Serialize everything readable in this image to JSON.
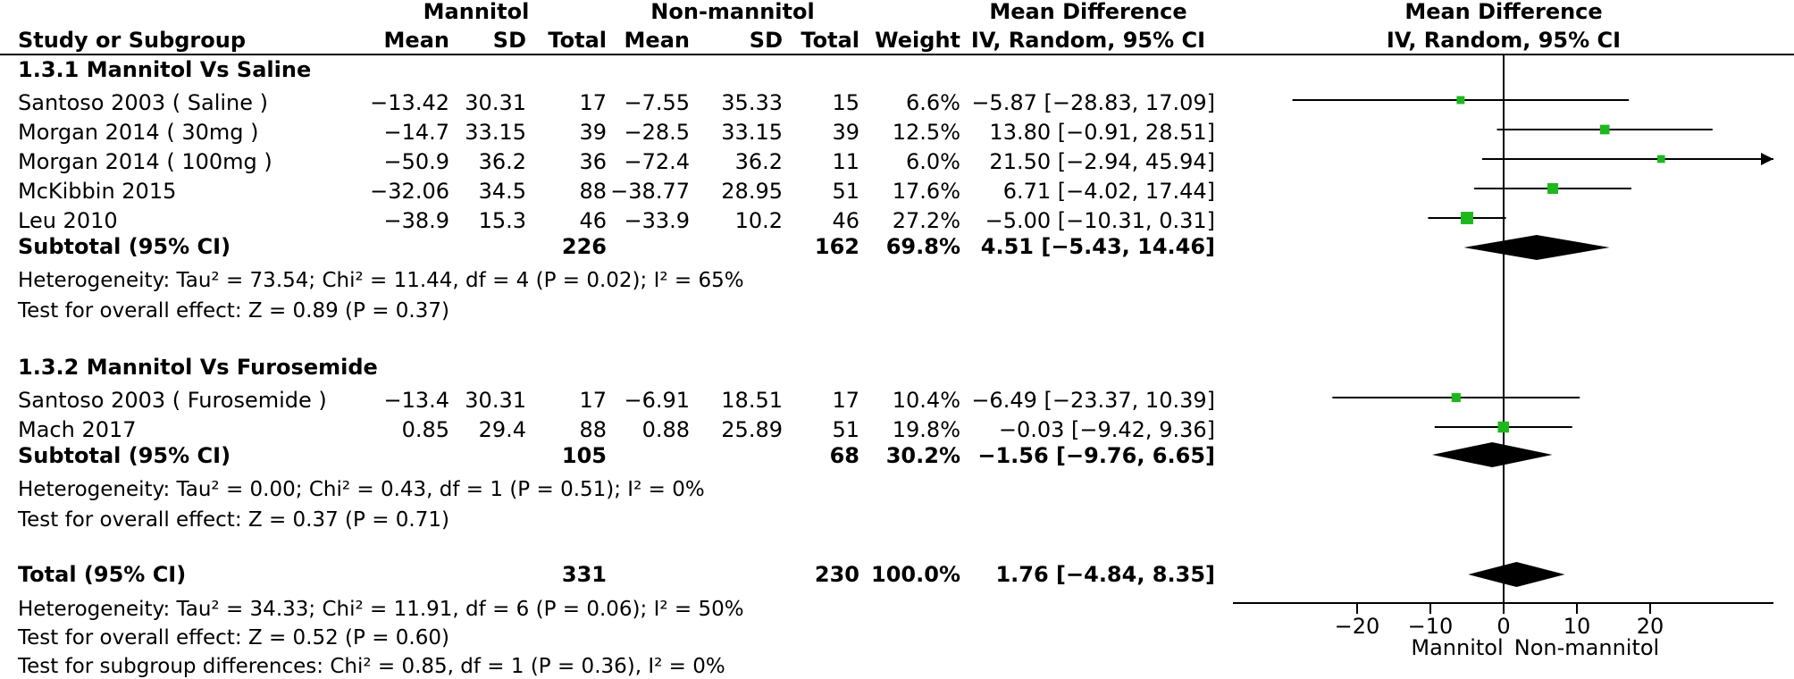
{
  "headers": {
    "group1": "Mannitol",
    "group2": "Non-mannitol",
    "col_mean_diff_top": "Mean Difference",
    "col_mean_diff_sub": "IV, Random, 95% CI",
    "plot_top": "Mean Difference",
    "plot_sub": "IV, Random, 95% CI",
    "study": "Study or Subgroup",
    "mean1": "Mean",
    "sd1": "SD",
    "total1": "Total",
    "mean2": "Mean",
    "sd2": "SD",
    "total2": "Total",
    "weight": "Weight"
  },
  "subgroups": [
    {
      "title": "1.3.1 Mannitol Vs Saline",
      "studies": [
        {
          "name": "Santoso 2003 ( Saline )",
          "mean1": "−13.42",
          "sd1": "30.31",
          "n1": "17",
          "mean2": "−7.55",
          "sd2": "35.33",
          "n2": "15",
          "weight": "6.6%",
          "ci_text": "−5.87 [−28.83, 17.09]"
        },
        {
          "name": "Morgan 2014 ( 30mg )",
          "mean1": "−14.7",
          "sd1": "33.15",
          "n1": "39",
          "mean2": "−28.5",
          "sd2": "33.15",
          "n2": "39",
          "weight": "12.5%",
          "ci_text": "13.80 [−0.91, 28.51]"
        },
        {
          "name": "Morgan 2014  ( 100mg )",
          "mean1": "−50.9",
          "sd1": "36.2",
          "n1": "36",
          "mean2": "−72.4",
          "sd2": "36.2",
          "n2": "11",
          "weight": "6.0%",
          "ci_text": "21.50 [−2.94, 45.94]"
        },
        {
          "name": "McKibbin 2015",
          "mean1": "−32.06",
          "sd1": "34.5",
          "n1": "88",
          "mean2": "−38.77",
          "sd2": "28.95",
          "n2": "51",
          "weight": "17.6%",
          "ci_text": "6.71 [−4.02, 17.44]"
        },
        {
          "name": "Leu 2010",
          "mean1": "−38.9",
          "sd1": "15.3",
          "n1": "46",
          "mean2": "−33.9",
          "sd2": "10.2",
          "n2": "46",
          "weight": "27.2%",
          "ci_text": "−5.00 [−10.31, 0.31]"
        }
      ],
      "subtotal": {
        "label": "Subtotal (95% CI)",
        "n1": "226",
        "n2": "162",
        "weight": "69.8%",
        "ci_text": "4.51 [−5.43, 14.46]"
      },
      "heterogeneity": "Heterogeneity: Tau² = 73.54; Chi² = 11.44, df = 4 (P = 0.02); I² = 65%",
      "overall": "Test for overall effect: Z = 0.89 (P = 0.37)"
    },
    {
      "title": "1.3.2 Mannitol Vs Furosemide",
      "studies": [
        {
          "name": "Santoso 2003 ( Furosemide )",
          "mean1": "−13.4",
          "sd1": "30.31",
          "n1": "17",
          "mean2": "−6.91",
          "sd2": "18.51",
          "n2": "17",
          "weight": "10.4%",
          "ci_text": "−6.49 [−23.37, 10.39]"
        },
        {
          "name": "Mach 2017",
          "mean1": "0.85",
          "sd1": "29.4",
          "n1": "88",
          "mean2": "0.88",
          "sd2": "25.89",
          "n2": "51",
          "weight": "19.8%",
          "ci_text": "−0.03 [−9.42, 9.36]"
        }
      ],
      "subtotal": {
        "label": "Subtotal (95% CI)",
        "n1": "105",
        "n2": "68",
        "weight": "30.2%",
        "ci_text": "−1.56 [−9.76, 6.65]"
      },
      "heterogeneity": "Heterogeneity: Tau² = 0.00; Chi² = 0.43, df = 1 (P = 0.51); I² = 0%",
      "overall": "Test for overall effect: Z = 0.37 (P = 0.71)"
    }
  ],
  "total": {
    "label": "Total (95% CI)",
    "n1": "331",
    "n2": "230",
    "weight": "100.0%",
    "ci_text": "1.76 [−4.84, 8.35]"
  },
  "total_heterogeneity": "Heterogeneity: Tau² = 34.33; Chi² = 11.91, df = 6 (P = 0.06); I² = 50%",
  "total_overall": "Test for overall effect: Z = 0.52 (P = 0.60)",
  "subgroup_diff": "Test for subgroup differences: Chi² = 0.85, df = 1 (P = 0.36), I² = 0%",
  "axis": {
    "ticks": [
      -20,
      -10,
      0,
      10,
      20
    ],
    "tick_labels": [
      "−20",
      "−10",
      "0",
      "10",
      "20"
    ],
    "left_label": "Mannitol",
    "right_label": "Non-mannitol"
  },
  "colors": {
    "square": "#1db81d",
    "diamond": "#000000"
  },
  "chart_data": {
    "type": "forest",
    "xlim": [
      -30,
      36
    ],
    "studies": [
      {
        "name": "Santoso 2003 ( Saline )",
        "md": -5.87,
        "lo": -28.83,
        "hi": 17.09,
        "weight": 6.6
      },
      {
        "name": "Morgan 2014 ( 30mg )",
        "md": 13.8,
        "lo": -0.91,
        "hi": 28.51,
        "weight": 12.5
      },
      {
        "name": "Morgan 2014  ( 100mg )",
        "md": 21.5,
        "lo": -2.94,
        "hi": 45.94,
        "weight": 6.0
      },
      {
        "name": "McKibbin 2015",
        "md": 6.71,
        "lo": -4.02,
        "hi": 17.44,
        "weight": 17.6
      },
      {
        "name": "Leu 2010",
        "md": -5.0,
        "lo": -10.31,
        "hi": 0.31,
        "weight": 27.2
      },
      {
        "name": "Santoso 2003 ( Furosemide )",
        "md": -6.49,
        "lo": -23.37,
        "hi": 10.39,
        "weight": 10.4
      },
      {
        "name": "Mach 2017",
        "md": -0.03,
        "lo": -9.42,
        "hi": 9.36,
        "weight": 19.8
      }
    ],
    "diamonds": [
      {
        "name": "Subtotal (95% CI) 1.3.1",
        "md": 4.51,
        "lo": -5.43,
        "hi": 14.46
      },
      {
        "name": "Subtotal (95% CI) 1.3.2",
        "md": -1.56,
        "lo": -9.76,
        "hi": 6.65
      },
      {
        "name": "Total (95% CI)",
        "md": 1.76,
        "lo": -4.84,
        "hi": 8.35
      }
    ]
  }
}
